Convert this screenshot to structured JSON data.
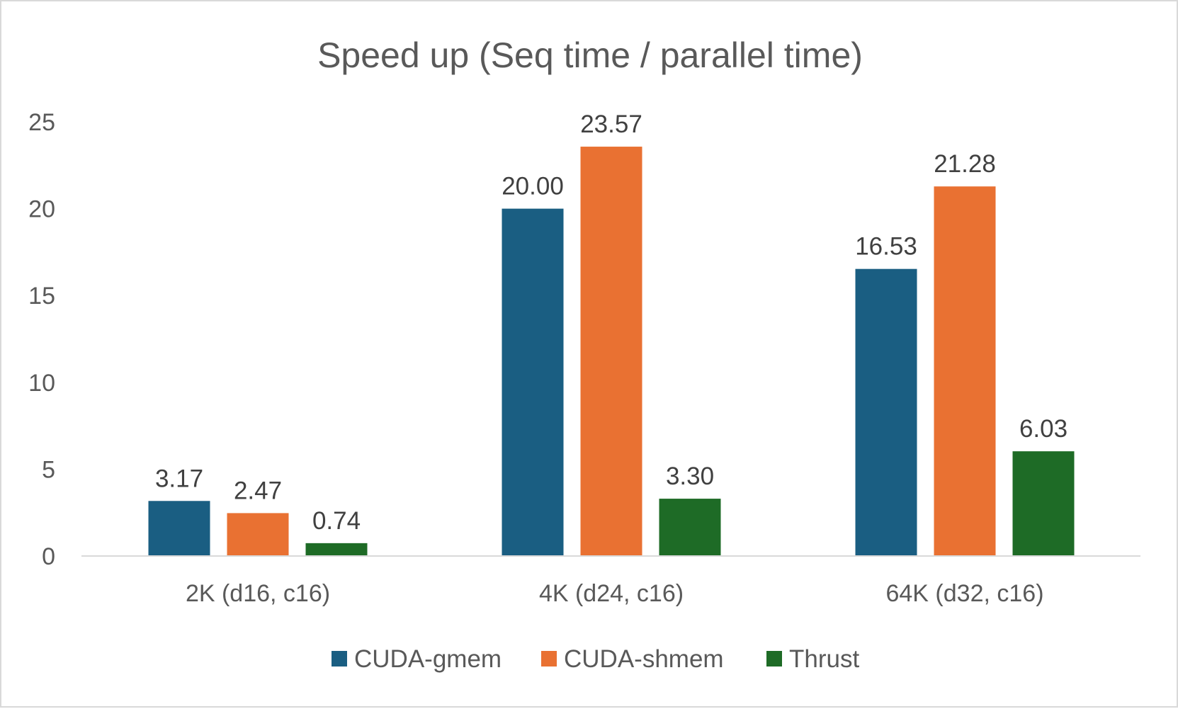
{
  "chart_data": {
    "type": "bar",
    "title": "Speed up (Seq time / parallel time)",
    "xlabel": "",
    "ylabel": "",
    "categories": [
      "2K (d16, c16)",
      "4K (d24, c16)",
      "64K (d32, c16)"
    ],
    "series": [
      {
        "name": "CUDA-gmem",
        "color": "#1a5e82",
        "values": [
          3.17,
          20.0,
          16.53
        ],
        "labels": [
          "3.17",
          "20.00",
          "16.53"
        ]
      },
      {
        "name": "CUDA-shmem",
        "color": "#e97132",
        "values": [
          2.47,
          23.57,
          21.28
        ],
        "labels": [
          "2.47",
          "23.57",
          "21.28"
        ]
      },
      {
        "name": "Thrust",
        "color": "#1e6b26",
        "values": [
          0.74,
          3.3,
          6.03
        ],
        "labels": [
          "0.74",
          "3.30",
          "6.03"
        ]
      }
    ],
    "ylim": [
      0,
      25
    ],
    "yticks": [
      0,
      5,
      10,
      15,
      20,
      25
    ],
    "grid": false,
    "legend_position": "bottom"
  }
}
